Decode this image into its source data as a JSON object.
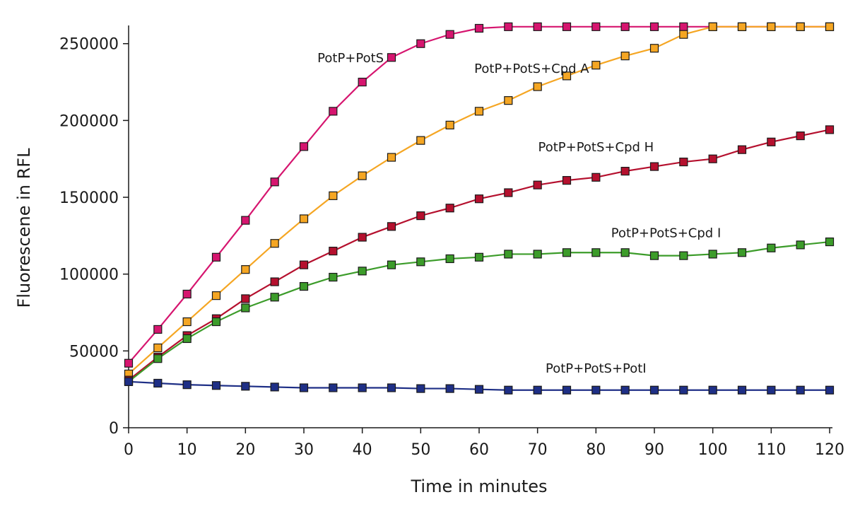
{
  "chart_data": {
    "type": "line",
    "xlabel": "Time in minutes",
    "ylabel": "Fluorescene in RFL",
    "xlim": [
      0,
      120
    ],
    "ylim": [
      0,
      260000
    ],
    "x_ticks": [
      0,
      10,
      20,
      30,
      40,
      50,
      60,
      70,
      80,
      90,
      100,
      110,
      120
    ],
    "y_ticks": [
      0,
      50000,
      100000,
      150000,
      200000,
      250000
    ],
    "grid": false,
    "x": [
      0,
      5,
      10,
      15,
      20,
      25,
      30,
      35,
      40,
      45,
      50,
      55,
      60,
      65,
      70,
      75,
      80,
      85,
      90,
      95,
      100,
      105,
      110,
      115,
      120
    ],
    "series": [
      {
        "name": "PotP+PotS",
        "color": "#d6156f",
        "values": [
          42000,
          64000,
          87000,
          111000,
          135000,
          160000,
          183000,
          206000,
          225000,
          241000,
          250000,
          256000,
          260000,
          261000,
          261000,
          261000,
          261000,
          261000,
          261000,
          261000,
          261000,
          261000,
          261000,
          261000,
          261000
        ]
      },
      {
        "name": "PotP+PotS+Cpd A",
        "color": "#f5a623",
        "values": [
          35000,
          52000,
          69000,
          86000,
          103000,
          120000,
          136000,
          151000,
          164000,
          176000,
          187000,
          197000,
          206000,
          213000,
          222000,
          229000,
          236000,
          242000,
          247000,
          256000,
          261000,
          261000,
          261000,
          261000,
          261000
        ]
      },
      {
        "name": "PotP+PotS+Cpd H",
        "color": "#b5102e",
        "values": [
          31000,
          46000,
          60000,
          71000,
          84000,
          95000,
          106000,
          115000,
          124000,
          131000,
          138000,
          143000,
          149000,
          153000,
          158000,
          161000,
          163000,
          167000,
          170000,
          173000,
          175000,
          181000,
          186000,
          190000,
          194000
        ]
      },
      {
        "name": "PotP+PotS+Cpd I",
        "color": "#3c9c2a",
        "values": [
          30000,
          45000,
          58000,
          69000,
          78000,
          85000,
          92000,
          98000,
          102000,
          106000,
          108000,
          110000,
          111000,
          113000,
          113000,
          114000,
          114000,
          114000,
          112000,
          112000,
          113000,
          114000,
          117000,
          119000,
          121000
        ]
      },
      {
        "name": "PotP+PotS+PotI",
        "color": "#1e2f86",
        "values": [
          30000,
          29000,
          28000,
          27500,
          27000,
          26500,
          26000,
          26000,
          26000,
          26000,
          25500,
          25500,
          25000,
          24500,
          24500,
          24500,
          24500,
          24500,
          24500,
          24500,
          24500,
          24500,
          24500,
          24500,
          24500
        ]
      }
    ],
    "annotations": [
      {
        "text": "PotP+PotS",
        "x": 38,
        "y": 238000
      },
      {
        "text": "PotP+PotS+Cpd A",
        "x": 69,
        "y": 231000
      },
      {
        "text": "PotP+PotS+Cpd H",
        "x": 80,
        "y": 180000
      },
      {
        "text": "PotP+PotS+Cpd I",
        "x": 92,
        "y": 124000
      },
      {
        "text": "PotP+PotS+PotI",
        "x": 80,
        "y": 36000
      }
    ]
  }
}
